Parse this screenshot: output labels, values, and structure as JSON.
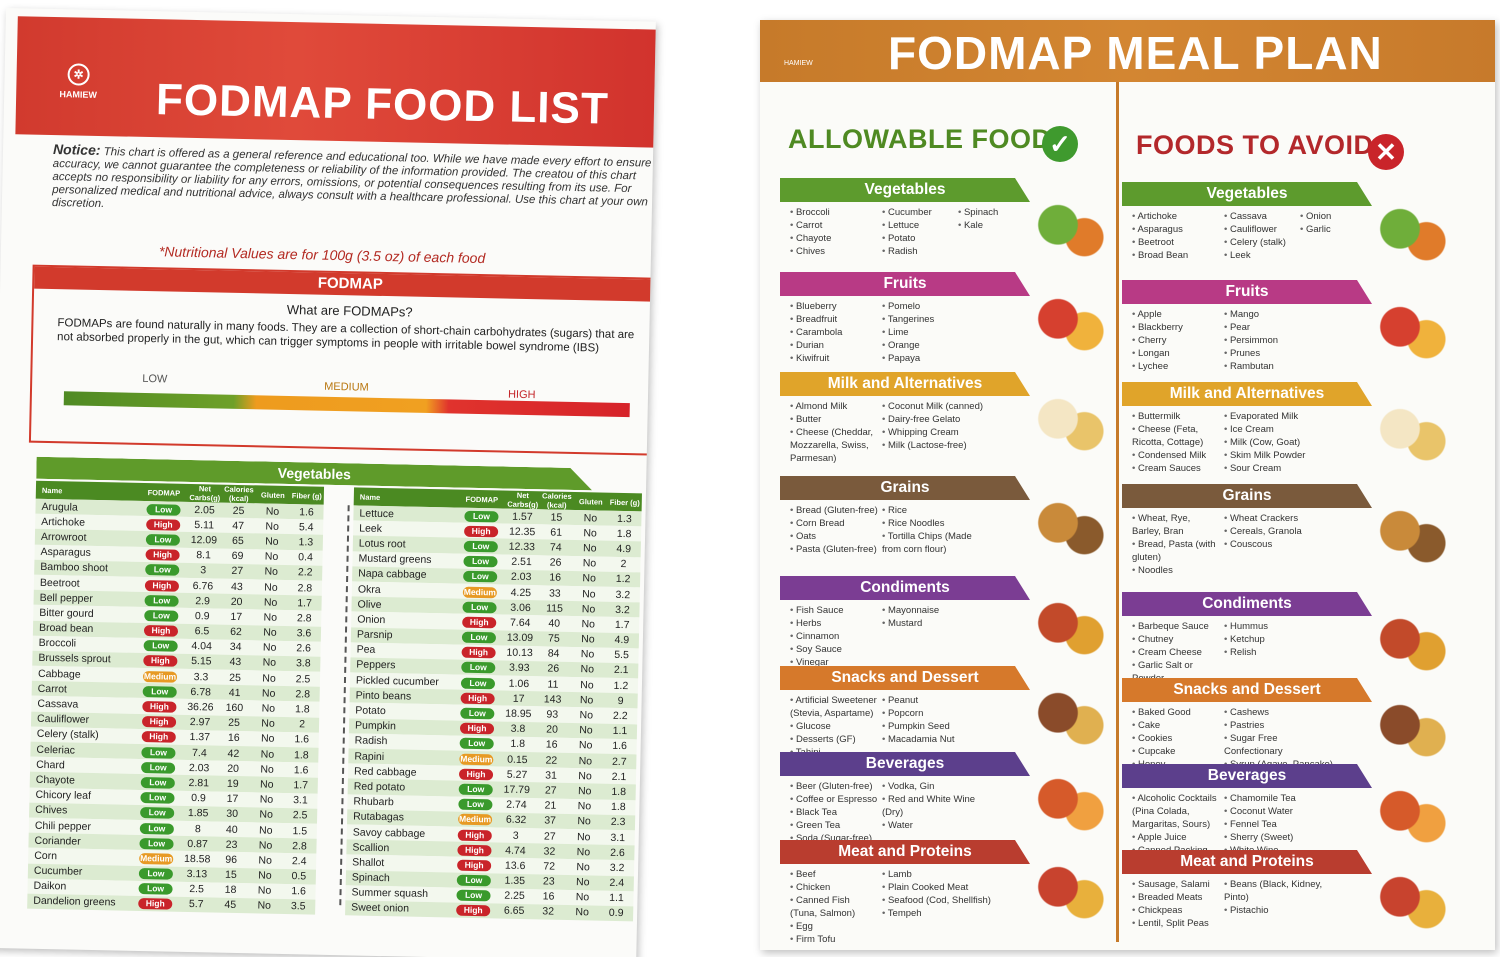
{
  "left": {
    "brand": "HAMIEW",
    "title": "FODMAP FOOD LIST",
    "notice_label": "Notice:",
    "notice_text": "This chart is offered as a general reference and educational too. While we have made every effort to ensure accuracy, we cannot guarantee the completeness or reliability of the information provided. The creatou of this chart accepts no responsibility or liability for any errors, omissions, or potential consequences resulting from its use. For personalized medical and nutritional advice, always consult with a healthcare professional. Use this chart at your own discretion.",
    "nutrition_note": "*Nutritional Values are for 100g (3.5 oz) of each food",
    "fodmap_header": "FODMAP",
    "fodmap_question": "What are FODMAPs?",
    "fodmap_text": "FODMAPs are found naturally in many foods. They are a collection of short-chain carbohydrates (sugars) that are not absorbed properly in the gut, which can trigger symptoms in people with irritable bowel syndrome (IBS)",
    "scale": {
      "low": "LOW",
      "medium": "MEDIUM",
      "high": "HIGH"
    },
    "veg_header": "Vegetables",
    "columns": [
      "Name",
      "FODMAP",
      "Net Carbs(g)",
      "Calories (kcal)",
      "Gluten",
      "Fiber (g)"
    ],
    "table1": [
      [
        "Arugula",
        "Low",
        "2.05",
        "25",
        "No",
        "1.6"
      ],
      [
        "Artichoke",
        "High",
        "5.11",
        "47",
        "No",
        "5.4"
      ],
      [
        "Arrowroot",
        "Low",
        "12.09",
        "65",
        "No",
        "1.3"
      ],
      [
        "Asparagus",
        "High",
        "8.1",
        "69",
        "No",
        "0.4"
      ],
      [
        "Bamboo shoot",
        "Low",
        "3",
        "27",
        "No",
        "2.2"
      ],
      [
        "Beetroot",
        "High",
        "6.76",
        "43",
        "No",
        "2.8"
      ],
      [
        "Bell pepper",
        "Low",
        "2.9",
        "20",
        "No",
        "1.7"
      ],
      [
        "Bitter gourd",
        "Low",
        "0.9",
        "17",
        "No",
        "2.8"
      ],
      [
        "Broad bean",
        "High",
        "6.5",
        "62",
        "No",
        "3.6"
      ],
      [
        "Broccoli",
        "Low",
        "4.04",
        "34",
        "No",
        "2.6"
      ],
      [
        "Brussels sprout",
        "High",
        "5.15",
        "43",
        "No",
        "3.8"
      ],
      [
        "Cabbage",
        "Medium",
        "3.3",
        "25",
        "No",
        "2.5"
      ],
      [
        "Carrot",
        "Low",
        "6.78",
        "41",
        "No",
        "2.8"
      ],
      [
        "Cassava",
        "High",
        "36.26",
        "160",
        "No",
        "1.8"
      ],
      [
        "Cauliflower",
        "High",
        "2.97",
        "25",
        "No",
        "2"
      ],
      [
        "Celery (stalk)",
        "High",
        "1.37",
        "16",
        "No",
        "1.6"
      ],
      [
        "Celeriac",
        "Low",
        "7.4",
        "42",
        "No",
        "1.8"
      ],
      [
        "Chard",
        "Low",
        "2.03",
        "20",
        "No",
        "1.6"
      ],
      [
        "Chayote",
        "Low",
        "2.81",
        "19",
        "No",
        "1.7"
      ],
      [
        "Chicory leaf",
        "Low",
        "0.9",
        "17",
        "No",
        "3.1"
      ],
      [
        "Chives",
        "Low",
        "1.85",
        "30",
        "No",
        "2.5"
      ],
      [
        "Chili pepper",
        "Low",
        "8",
        "40",
        "No",
        "1.5"
      ],
      [
        "Coriander",
        "Low",
        "0.87",
        "23",
        "No",
        "2.8"
      ],
      [
        "Corn",
        "Medium",
        "18.58",
        "96",
        "No",
        "2.4"
      ],
      [
        "Cucumber",
        "Low",
        "3.13",
        "15",
        "No",
        "0.5"
      ],
      [
        "Daikon",
        "Low",
        "2.5",
        "18",
        "No",
        "1.6"
      ],
      [
        "Dandelion greens",
        "High",
        "5.7",
        "45",
        "No",
        "3.5"
      ]
    ],
    "table2": [
      [
        "Lettuce",
        "Low",
        "1.57",
        "15",
        "No",
        "1.3"
      ],
      [
        "Leek",
        "High",
        "12.35",
        "61",
        "No",
        "1.8"
      ],
      [
        "Lotus root",
        "Low",
        "12.33",
        "74",
        "No",
        "4.9"
      ],
      [
        "Mustard greens",
        "Low",
        "2.51",
        "26",
        "No",
        "2"
      ],
      [
        "Napa cabbage",
        "Low",
        "2.03",
        "16",
        "No",
        "1.2"
      ],
      [
        "Okra",
        "Medium",
        "4.25",
        "33",
        "No",
        "3.2"
      ],
      [
        "Olive",
        "Low",
        "3.06",
        "115",
        "No",
        "3.2"
      ],
      [
        "Onion",
        "High",
        "7.64",
        "40",
        "No",
        "1.7"
      ],
      [
        "Parsnip",
        "Low",
        "13.09",
        "75",
        "No",
        "4.9"
      ],
      [
        "Pea",
        "High",
        "10.13",
        "84",
        "No",
        "5.5"
      ],
      [
        "Peppers",
        "Low",
        "3.93",
        "26",
        "No",
        "2.1"
      ],
      [
        "Pickled cucumber",
        "Low",
        "1.06",
        "11",
        "No",
        "1.2"
      ],
      [
        "Pinto beans",
        "High",
        "17",
        "143",
        "No",
        "9"
      ],
      [
        "Potato",
        "Low",
        "18.95",
        "93",
        "No",
        "2.2"
      ],
      [
        "Pumpkin",
        "High",
        "3.8",
        "20",
        "No",
        "1.1"
      ],
      [
        "Radish",
        "Low",
        "1.8",
        "16",
        "No",
        "1.6"
      ],
      [
        "Rapini",
        "Medium",
        "0.15",
        "22",
        "No",
        "2.7"
      ],
      [
        "Red cabbage",
        "High",
        "5.27",
        "31",
        "No",
        "2.1"
      ],
      [
        "Red potato",
        "Low",
        "17.79",
        "27",
        "No",
        "1.8"
      ],
      [
        "Rhubarb",
        "Low",
        "2.74",
        "21",
        "No",
        "1.8"
      ],
      [
        "Rutabagas",
        "Medium",
        "6.32",
        "37",
        "No",
        "2.3"
      ],
      [
        "Savoy cabbage",
        "High",
        "3",
        "27",
        "No",
        "3.1"
      ],
      [
        "Scallion",
        "High",
        "4.74",
        "32",
        "No",
        "2.6"
      ],
      [
        "Shallot",
        "High",
        "13.6",
        "72",
        "No",
        "3.2"
      ],
      [
        "Spinach",
        "Low",
        "1.35",
        "23",
        "No",
        "2.4"
      ],
      [
        "Summer squash",
        "Low",
        "2.25",
        "16",
        "No",
        "1.1"
      ],
      [
        "Sweet onion",
        "High",
        "6.65",
        "32",
        "No",
        "0.9"
      ]
    ]
  },
  "right": {
    "brand": "HAMIEW",
    "title": "FODMAP MEAL PLAN",
    "allow_title": "ALLOWABLE FOOD",
    "avoid_title": "FOODS TO AVOID",
    "check_icon": "✓",
    "x_icon": "✕",
    "allow": [
      {
        "title": "Vegetables",
        "cols": [
          [
            "Broccoli",
            "Carrot",
            "Chayote",
            "Chives"
          ],
          [
            "Cucumber",
            "Lettuce",
            "Potato",
            "Radish"
          ],
          [
            "Spinach",
            "Kale",
            "",
            ""
          ]
        ]
      },
      {
        "title": "Fruits",
        "cols": [
          [
            "Blueberry",
            "Breadfruit",
            "Carambola",
            "Durian",
            "Kiwifruit"
          ],
          [
            "Pomelo",
            "Tangerines",
            "Lime",
            "Orange",
            "Papaya"
          ]
        ]
      },
      {
        "title": "Milk and Alternatives",
        "cols": [
          [
            "Almond Milk",
            "Butter",
            "Cheese (Cheddar, Mozzarella, Swiss, Parmesan)"
          ],
          [
            "Coconut Milk (canned)",
            "Dairy-free Gelato",
            "Whipping Cream",
            "Milk (Lactose-free)"
          ]
        ]
      },
      {
        "title": "Grains",
        "cols": [
          [
            "Bread (Gluten-free)",
            "Corn Bread",
            "Oats",
            "Pasta (Gluten-free)"
          ],
          [
            "Rice",
            "Rice Noodles",
            "Tortilla Chips (Made from corn flour)"
          ]
        ]
      },
      {
        "title": "Condiments",
        "cols": [
          [
            "Fish Sauce",
            "Herbs",
            "Cinnamon",
            "Soy Sauce",
            "Vinegar"
          ],
          [
            "Mayonnaise",
            "Mustard"
          ]
        ]
      },
      {
        "title": "Snacks and Dessert",
        "cols": [
          [
            "Artificial Sweetener (Stevia, Aspartame)",
            "Glucose",
            "Desserts (GF)",
            "Tahini"
          ],
          [
            "Peanut",
            "Popcorn",
            "Pumpkin Seed",
            "Macadamia Nut"
          ]
        ]
      },
      {
        "title": "Beverages",
        "cols": [
          [
            "Beer (Gluten-free)",
            "Coffee or Espresso",
            "Black Tea",
            "Green Tea",
            "Soda (Sugar-free)"
          ],
          [
            "Vodka, Gin",
            "Red and White Wine (Dry)",
            "Water"
          ]
        ]
      },
      {
        "title": "Meat and Proteins",
        "cols": [
          [
            "Beef",
            "Chicken",
            "Canned Fish (Tuna, Salmon)",
            "Egg",
            "Firm Tofu"
          ],
          [
            "Lamb",
            "Plain Cooked Meat",
            "Seafood (Cod, Shellfish)",
            "Tempeh"
          ]
        ]
      }
    ],
    "avoid": [
      {
        "title": "Vegetables",
        "cols": [
          [
            "Artichoke",
            "Asparagus",
            "Beetroot",
            "Broad Bean"
          ],
          [
            "Cassava",
            "Cauliflower",
            "Celery (stalk)",
            "Leek"
          ],
          [
            "Onion",
            "Garlic"
          ]
        ]
      },
      {
        "title": "Fruits",
        "cols": [
          [
            "Apple",
            "Blackberry",
            "Cherry",
            "Longan",
            "Lychee"
          ],
          [
            "Mango",
            "Pear",
            "Persimmon",
            "Prunes",
            "Rambutan"
          ]
        ]
      },
      {
        "title": "Milk and Alternatives",
        "cols": [
          [
            "Buttermilk",
            "Cheese (Feta, Ricotta, Cottage)",
            "Condensed Milk",
            "Cream Sauces"
          ],
          [
            "Evaporated Milk",
            "Ice Cream",
            "Milk (Cow, Goat)",
            "Skim Milk Powder",
            "Sour Cream"
          ]
        ]
      },
      {
        "title": "Grains",
        "cols": [
          [
            "Wheat, Rye, Barley, Bran",
            "Bread, Pasta (with gluten)",
            "Noodles"
          ],
          [
            "Wheat Crackers",
            "Cereals, Granola",
            "Couscous"
          ]
        ]
      },
      {
        "title": "Condiments",
        "cols": [
          [
            "Barbeque Sauce",
            "Chutney",
            "Cream Cheese",
            "Garlic Salt or Powder"
          ],
          [
            "Hummus",
            "Ketchup",
            "Relish"
          ]
        ]
      },
      {
        "title": "Snacks and Dessert",
        "cols": [
          [
            "Baked Good",
            "Cake",
            "Cookies",
            "Cupcake",
            "Honey"
          ],
          [
            "Cashews",
            "Pastries",
            "Sugar Free Confectionary",
            "Syrup (Agave, Pancake)"
          ]
        ]
      },
      {
        "title": "Beverages",
        "cols": [
          [
            "Alcoholic Cocktails (Pina Colada, Margaritas, Sours)",
            "Apple Juice",
            "Canned Packing Juice"
          ],
          [
            "Chamomile Tea",
            "Coconut Water",
            "Fennel Tea",
            "Sherry (Sweet)",
            "White Wine"
          ]
        ]
      },
      {
        "title": "Meat and Proteins",
        "cols": [
          [
            "Sausage, Salami",
            "Breaded Meats",
            "Chickpeas",
            "Lentil, Split Peas"
          ],
          [
            "Beans (Black, Kidney, Pinto)",
            "Pistachio"
          ]
        ]
      }
    ],
    "section_colors": [
      "#5d9b2d",
      "#b83a85",
      "#e0a42a",
      "#7a5a3c",
      "#7b3d93",
      "#d6792b",
      "#5c3f8c",
      "#b93d2f"
    ]
  }
}
